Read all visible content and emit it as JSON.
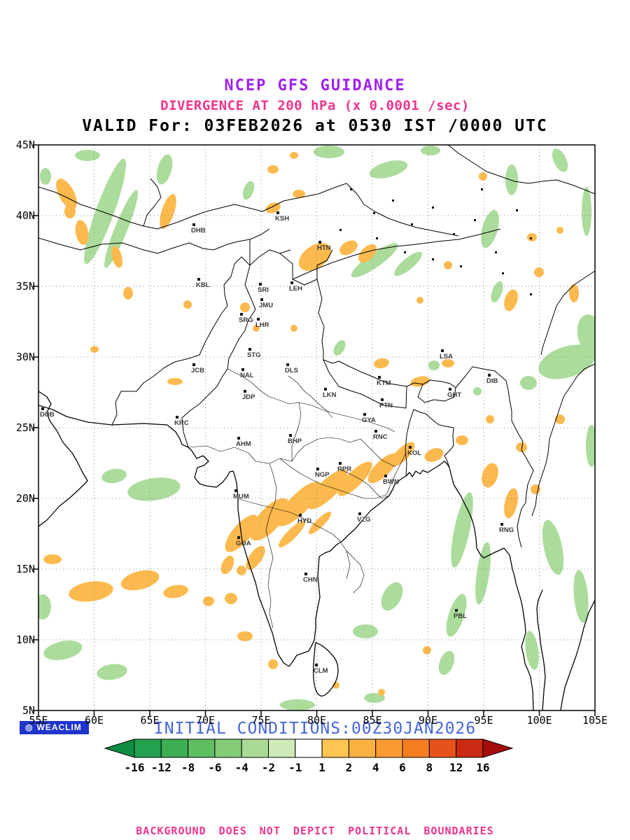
{
  "header": {
    "line1": "NCEP GFS GUIDANCE",
    "line2": "DIVERGENCE AT 200 hPa (x 0.0001 /sec)",
    "line3": "VALID For: 03FEB2026 at 0530 IST /0000 UTC"
  },
  "axes": {
    "lat_labels": [
      "45N",
      "40N",
      "35N",
      "30N",
      "25N",
      "20N",
      "15N",
      "10N",
      "5N"
    ],
    "lon_labels": [
      "55E",
      "60E",
      "65E",
      "70E",
      "75E",
      "80E",
      "85E",
      "90E",
      "95E",
      "100E",
      "105E"
    ]
  },
  "stations": [
    [
      "DHB",
      218,
      125
    ],
    [
      "KSH",
      338,
      108
    ],
    [
      "HTN",
      398,
      150
    ],
    [
      "KBL",
      225,
      203
    ],
    [
      "SRI",
      313,
      210
    ],
    [
      "LEH",
      358,
      208
    ],
    [
      "JMU",
      315,
      232
    ],
    [
      "SRG",
      286,
      253
    ],
    [
      "LHR",
      310,
      260
    ],
    [
      "STG",
      298,
      303
    ],
    [
      "JCB",
      218,
      325
    ],
    [
      "NAL",
      288,
      332
    ],
    [
      "DLS",
      352,
      325
    ],
    [
      "JDP",
      291,
      363
    ],
    [
      "LKN",
      406,
      360
    ],
    [
      "KTM",
      483,
      343
    ],
    [
      "LSA",
      573,
      305
    ],
    [
      "GHT",
      584,
      360
    ],
    [
      "DIB",
      640,
      340
    ],
    [
      "DUB",
      2,
      388
    ],
    [
      "KRC",
      194,
      400
    ],
    [
      "AHM",
      282,
      430
    ],
    [
      "BHP",
      356,
      426
    ],
    [
      "PTN",
      487,
      375
    ],
    [
      "GYA",
      462,
      396
    ],
    [
      "RNC",
      478,
      420
    ],
    [
      "KOL",
      527,
      443
    ],
    [
      "RPR",
      427,
      466
    ],
    [
      "NGP",
      395,
      474
    ],
    [
      "BWN",
      492,
      484
    ],
    [
      "MUM",
      278,
      505
    ],
    [
      "HYD",
      370,
      540
    ],
    [
      "VZG",
      455,
      538
    ],
    [
      "GOA",
      282,
      572
    ],
    [
      "CHN",
      378,
      624
    ],
    [
      "CLM",
      393,
      754
    ],
    [
      "RNG",
      658,
      553
    ],
    [
      "PBL",
      593,
      676
    ]
  ],
  "shading": {
    "green_color": "#abdc9c",
    "orange_color": "#fcba4e",
    "blobs": [
      [
        "g",
        95,
        95,
        13,
        80,
        20
      ],
      [
        "g",
        118,
        120,
        9,
        60,
        22
      ],
      [
        "g",
        70,
        15,
        18,
        8,
        0
      ],
      [
        "g",
        10,
        45,
        8,
        12,
        0
      ],
      [
        "g",
        415,
        10,
        22,
        9,
        0
      ],
      [
        "g",
        500,
        35,
        28,
        11,
        -15
      ],
      [
        "g",
        560,
        8,
        14,
        7,
        0
      ],
      [
        "g",
        645,
        120,
        11,
        28,
        15
      ],
      [
        "g",
        676,
        50,
        9,
        22,
        0
      ],
      [
        "g",
        745,
        22,
        9,
        18,
        -25
      ],
      [
        "g",
        783,
        95,
        7,
        35,
        0
      ],
      [
        "g",
        480,
        165,
        10,
        40,
        55
      ],
      [
        "g",
        528,
        170,
        8,
        25,
        50
      ],
      [
        "g",
        755,
        310,
        42,
        22,
        -18
      ],
      [
        "g",
        788,
        270,
        18,
        28,
        -10
      ],
      [
        "g",
        700,
        340,
        12,
        10,
        0
      ],
      [
        "g",
        605,
        550,
        11,
        55,
        12
      ],
      [
        "g",
        635,
        612,
        9,
        45,
        8
      ],
      [
        "g",
        597,
        672,
        11,
        32,
        18
      ],
      [
        "g",
        505,
        645,
        13,
        22,
        28
      ],
      [
        "g",
        467,
        695,
        18,
        10,
        0
      ],
      [
        "g",
        35,
        722,
        28,
        13,
        -12
      ],
      [
        "g",
        105,
        753,
        22,
        11,
        -8
      ],
      [
        "g",
        6,
        660,
        12,
        18,
        0
      ],
      [
        "g",
        165,
        492,
        38,
        16,
        -8
      ],
      [
        "g",
        108,
        473,
        18,
        10,
        -10
      ],
      [
        "g",
        735,
        575,
        13,
        40,
        -12
      ],
      [
        "g",
        775,
        645,
        10,
        38,
        -5
      ],
      [
        "g",
        705,
        722,
        9,
        28,
        -8
      ],
      [
        "g",
        565,
        315,
        8,
        7,
        0
      ],
      [
        "g",
        627,
        352,
        6,
        6,
        0
      ],
      [
        "g",
        180,
        35,
        10,
        22,
        15
      ],
      [
        "g",
        300,
        65,
        7,
        14,
        20
      ],
      [
        "g",
        430,
        290,
        7,
        12,
        30
      ],
      [
        "g",
        655,
        210,
        7,
        16,
        20
      ],
      [
        "g",
        790,
        430,
        8,
        30,
        0
      ],
      [
        "g",
        370,
        800,
        25,
        8,
        0
      ],
      [
        "g",
        480,
        790,
        15,
        7,
        0
      ],
      [
        "g",
        583,
        740,
        10,
        18,
        20
      ],
      [
        "o",
        40,
        70,
        11,
        24,
        -28
      ],
      [
        "o",
        62,
        125,
        9,
        18,
        -10
      ],
      [
        "o",
        45,
        95,
        8,
        10,
        0
      ],
      [
        "o",
        112,
        160,
        7,
        16,
        -15
      ],
      [
        "o",
        128,
        212,
        7,
        9,
        0
      ],
      [
        "o",
        185,
        95,
        9,
        26,
        18
      ],
      [
        "o",
        213,
        228,
        6,
        6,
        0
      ],
      [
        "o",
        335,
        90,
        11,
        7,
        -20
      ],
      [
        "o",
        372,
        70,
        9,
        6,
        0
      ],
      [
        "o",
        395,
        160,
        26,
        16,
        -35
      ],
      [
        "o",
        443,
        147,
        14,
        9,
        -30
      ],
      [
        "o",
        470,
        155,
        9,
        16,
        45
      ],
      [
        "o",
        295,
        232,
        7,
        7,
        0
      ],
      [
        "o",
        311,
        262,
        5,
        5,
        0
      ],
      [
        "o",
        365,
        262,
        5,
        5,
        0
      ],
      [
        "o",
        490,
        312,
        11,
        7,
        -10
      ],
      [
        "o",
        545,
        338,
        14,
        7,
        -12
      ],
      [
        "o",
        585,
        312,
        9,
        6,
        0
      ],
      [
        "o",
        675,
        222,
        9,
        16,
        18
      ],
      [
        "o",
        715,
        182,
        7,
        7,
        0
      ],
      [
        "o",
        765,
        212,
        7,
        13,
        0
      ],
      [
        "o",
        585,
        172,
        6,
        6,
        0
      ],
      [
        "o",
        545,
        222,
        5,
        5,
        0
      ],
      [
        "o",
        635,
        45,
        6,
        6,
        0
      ],
      [
        "o",
        705,
        132,
        7,
        6,
        0
      ],
      [
        "o",
        745,
        122,
        5,
        5,
        0
      ],
      [
        "o",
        335,
        35,
        8,
        6,
        0
      ],
      [
        "o",
        365,
        15,
        6,
        5,
        0
      ],
      [
        "o",
        290,
        555,
        13,
        33,
        40
      ],
      [
        "o",
        330,
        535,
        16,
        38,
        42
      ],
      [
        "o",
        372,
        513,
        14,
        42,
        44
      ],
      [
        "o",
        413,
        492,
        13,
        38,
        45
      ],
      [
        "o",
        452,
        477,
        11,
        33,
        45
      ],
      [
        "o",
        492,
        462,
        11,
        28,
        45
      ],
      [
        "o",
        520,
        442,
        9,
        23,
        45
      ],
      [
        "o",
        362,
        556,
        7,
        26,
        45
      ],
      [
        "o",
        402,
        540,
        6,
        22,
        45
      ],
      [
        "o",
        310,
        590,
        9,
        20,
        35
      ],
      [
        "o",
        270,
        600,
        8,
        14,
        25
      ],
      [
        "o",
        75,
        638,
        32,
        14,
        -8
      ],
      [
        "o",
        145,
        622,
        28,
        13,
        -14
      ],
      [
        "o",
        196,
        638,
        18,
        9,
        -10
      ],
      [
        "o",
        243,
        652,
        8,
        7,
        0
      ],
      [
        "o",
        275,
        648,
        9,
        8,
        0
      ],
      [
        "o",
        290,
        608,
        7,
        7,
        0
      ],
      [
        "o",
        20,
        592,
        13,
        7,
        0
      ],
      [
        "o",
        565,
        443,
        14,
        9,
        -22
      ],
      [
        "o",
        605,
        422,
        9,
        7,
        0
      ],
      [
        "o",
        645,
        472,
        11,
        18,
        18
      ],
      [
        "o",
        675,
        512,
        9,
        22,
        12
      ],
      [
        "o",
        710,
        492,
        7,
        7,
        0
      ],
      [
        "o",
        690,
        432,
        8,
        7,
        0
      ],
      [
        "o",
        745,
        392,
        7,
        7,
        0
      ],
      [
        "o",
        645,
        392,
        6,
        6,
        0
      ],
      [
        "o",
        295,
        702,
        11,
        7,
        0
      ],
      [
        "o",
        335,
        742,
        7,
        7,
        0
      ],
      [
        "o",
        425,
        772,
        5,
        5,
        0
      ],
      [
        "o",
        490,
        782,
        5,
        5,
        0
      ],
      [
        "o",
        555,
        722,
        6,
        6,
        0
      ],
      [
        "o",
        195,
        338,
        11,
        5,
        0
      ],
      [
        "o",
        80,
        292,
        6,
        5,
        0
      ]
    ]
  },
  "colorbar": {
    "labels": [
      "-16",
      "-12",
      "-8",
      "-6",
      "-4",
      "-2",
      "-1",
      "1",
      "2",
      "4",
      "6",
      "8",
      "12",
      "16"
    ],
    "arrow_left_color": "#0e8c42",
    "segment_colors": [
      "#23a14e",
      "#3dae53",
      "#5fbd62",
      "#85cc78",
      "#a9db95",
      "#cdeab8",
      "#ffffff",
      "#fdc551",
      "#fcb143",
      "#fa9a33",
      "#f47e22",
      "#e5531a",
      "#cb2a12"
    ],
    "arrow_right_color": "#a50d0d"
  },
  "footer": {
    "logo_text": "WEACLIM",
    "logo_icon_glyph": "◎",
    "initial_conditions": "INITIAL CONDITIONS:00Z30JAN2026",
    "disclaimer": "BACKGROUND DOES NOT DEPICT POLITICAL BOUNDARIES"
  },
  "colors": {
    "title": "#a020f0",
    "subtitle": "#f0348c",
    "valid": "#000000",
    "initial": "#4466dd",
    "badge_bg": "#1f35cc",
    "grid": "#8c8c8c",
    "shade_green": "#abdc9c",
    "shade_orange": "#fcba4e"
  }
}
